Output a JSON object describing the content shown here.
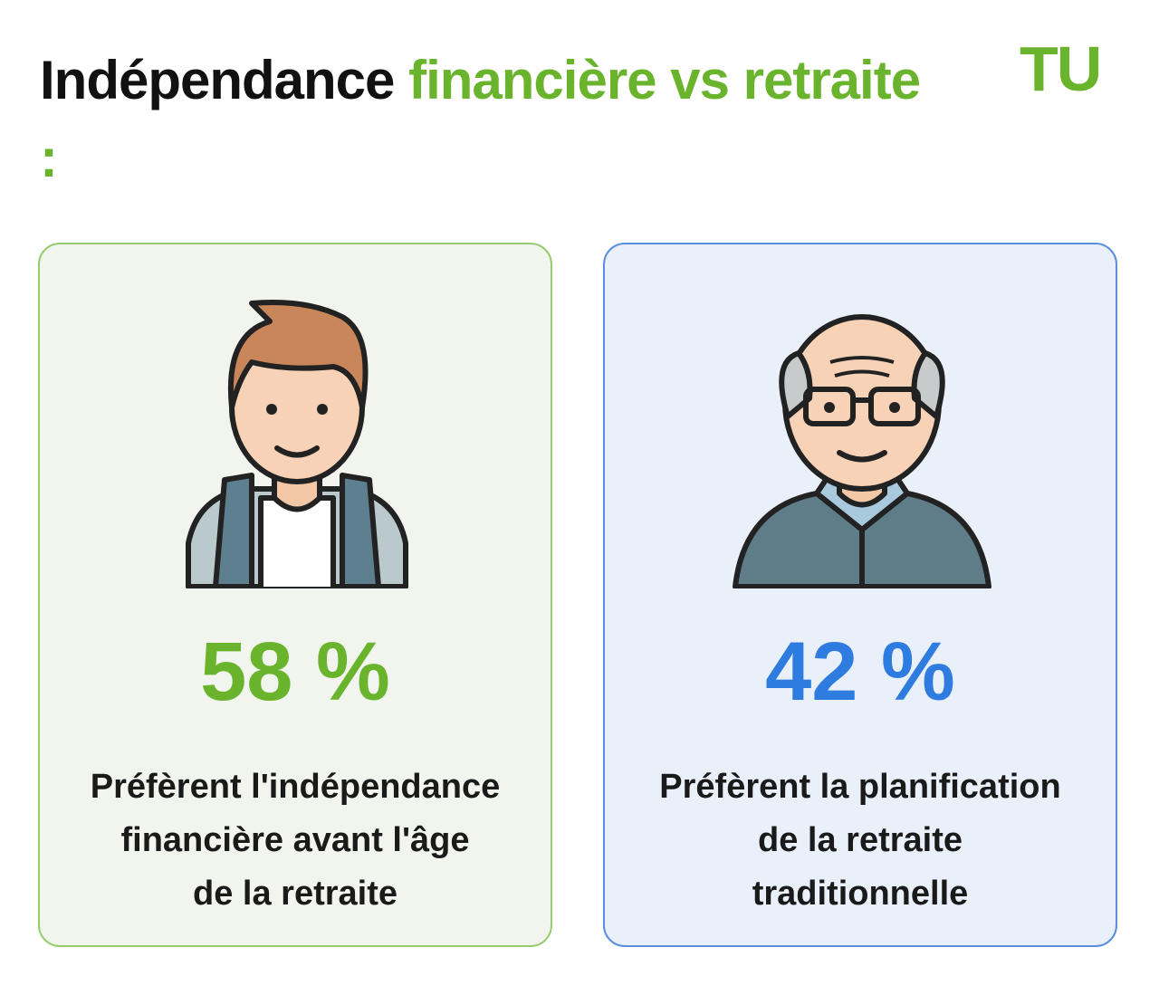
{
  "header": {
    "title_dark": "Indépendance",
    "title_green": "financière vs retraite :",
    "logo": "TU"
  },
  "cards": [
    {
      "stat": "58 %",
      "description": [
        "Préfèrent l'indépendance",
        "financière avant l'âge",
        "de la retraite"
      ]
    },
    {
      "stat": "42 %",
      "description": [
        "Préfèrent la planification",
        "de la retraite",
        "traditionnelle"
      ]
    }
  ]
}
